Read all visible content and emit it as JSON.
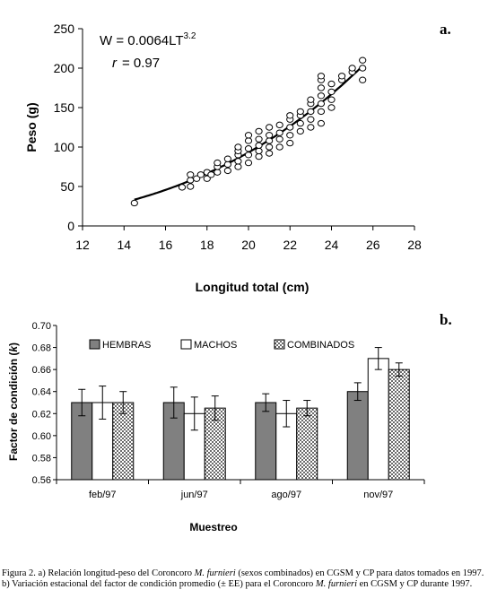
{
  "chart_data": [
    {
      "panel_label": "a.",
      "type": "scatter",
      "xlabel": "Longitud total (cm)",
      "ylabel": "Peso (g)",
      "xlim": [
        12,
        28
      ],
      "ylim": [
        0,
        250
      ],
      "xticks": [
        "12",
        "14",
        "16",
        "18",
        "20",
        "22",
        "24",
        "26",
        "28"
      ],
      "yticks": [
        "0",
        "50",
        "100",
        "150",
        "200",
        "250"
      ],
      "grid": false,
      "annotation_equation": {
        "prefix": "W = 0.0064LT",
        "superscript": "3.2"
      },
      "annotation_r": {
        "symbol": "r",
        "text": "= 0.97"
      },
      "fit": {
        "a": 0.0064,
        "b": 3.2
      },
      "points": [
        [
          14.5,
          29
        ],
        [
          16.8,
          49
        ],
        [
          17.2,
          50
        ],
        [
          17.2,
          58
        ],
        [
          17.2,
          65
        ],
        [
          17.5,
          60
        ],
        [
          17.7,
          65
        ],
        [
          18.0,
          60
        ],
        [
          18.0,
          68
        ],
        [
          18.2,
          65
        ],
        [
          18.5,
          68
        ],
        [
          18.5,
          75
        ],
        [
          18.5,
          80
        ],
        [
          19.0,
          70
        ],
        [
          19.0,
          78
        ],
        [
          19.0,
          85
        ],
        [
          19.5,
          75
        ],
        [
          19.5,
          82
        ],
        [
          19.5,
          90
        ],
        [
          19.5,
          95
        ],
        [
          19.5,
          100
        ],
        [
          20.0,
          80
        ],
        [
          20.0,
          90
        ],
        [
          20.0,
          98
        ],
        [
          20.0,
          108
        ],
        [
          20.0,
          115
        ],
        [
          20.5,
          88
        ],
        [
          20.5,
          95
        ],
        [
          20.5,
          102
        ],
        [
          20.5,
          110
        ],
        [
          20.5,
          120
        ],
        [
          21.0,
          92
        ],
        [
          21.0,
          100
        ],
        [
          21.0,
          108
        ],
        [
          21.0,
          115
        ],
        [
          21.0,
          125
        ],
        [
          21.5,
          100
        ],
        [
          21.5,
          110
        ],
        [
          21.5,
          118
        ],
        [
          21.5,
          128
        ],
        [
          22.0,
          105
        ],
        [
          22.0,
          115
        ],
        [
          22.0,
          125
        ],
        [
          22.0,
          135
        ],
        [
          22.0,
          140
        ],
        [
          22.5,
          120
        ],
        [
          22.5,
          130
        ],
        [
          22.5,
          140
        ],
        [
          22.5,
          145
        ],
        [
          23.0,
          125
        ],
        [
          23.0,
          135
        ],
        [
          23.0,
          145
        ],
        [
          23.0,
          155
        ],
        [
          23.0,
          160
        ],
        [
          23.5,
          130
        ],
        [
          23.5,
          145
        ],
        [
          23.5,
          155
        ],
        [
          23.5,
          165
        ],
        [
          23.5,
          175
        ],
        [
          23.5,
          185
        ],
        [
          23.5,
          190
        ],
        [
          24.0,
          150
        ],
        [
          24.0,
          160
        ],
        [
          24.0,
          170
        ],
        [
          24.0,
          180
        ],
        [
          24.5,
          185
        ],
        [
          24.5,
          190
        ],
        [
          25.0,
          195
        ],
        [
          25.0,
          200
        ],
        [
          25.5,
          185
        ],
        [
          25.5,
          200
        ],
        [
          25.5,
          210
        ]
      ]
    },
    {
      "panel_label": "b.",
      "type": "bar",
      "xlabel": "Muestreo",
      "ylabel": "Factor de condición (k)",
      "ylabel_prefix": "Factor de condición (",
      "ylabel_symbol": "k",
      "ylabel_suffix": ")",
      "ylim": [
        0.56,
        0.7
      ],
      "yticks": [
        "0.70",
        "0.68",
        "0.66",
        "0.64",
        "0.62",
        "0.60",
        "0.58",
        "0.56"
      ],
      "categories": [
        "feb/97",
        "jun/97",
        "ago/97",
        "nov/97"
      ],
      "series": [
        {
          "name": "HEMBRAS",
          "values": [
            0.63,
            0.63,
            0.63,
            0.64
          ],
          "errors": [
            0.012,
            0.014,
            0.008,
            0.008
          ],
          "color": "#808080"
        },
        {
          "name": "MACHOS",
          "values": [
            0.63,
            0.62,
            0.62,
            0.67
          ],
          "errors": [
            0.015,
            0.015,
            0.012,
            0.01
          ],
          "color": "#ffffff"
        },
        {
          "name": "COMBINADOS",
          "values": [
            0.63,
            0.625,
            0.625,
            0.66
          ],
          "errors": [
            0.01,
            0.011,
            0.007,
            0.006
          ],
          "color": "dotted"
        }
      ],
      "legend_position": "top",
      "grid": false
    }
  ],
  "caption": {
    "p1": "Figura 2. a) Relación longitud-peso del Coroncoro ",
    "species1": "M. furnieri",
    "p2": " (sexos combinados) en CGSM y CP para datos tomados en 1997. b) Variación estacional del factor de condición promedio (± EE) para el Coroncoro ",
    "species2": "M. furnieri",
    "p3": " en CGSM y CP durante 1997."
  }
}
